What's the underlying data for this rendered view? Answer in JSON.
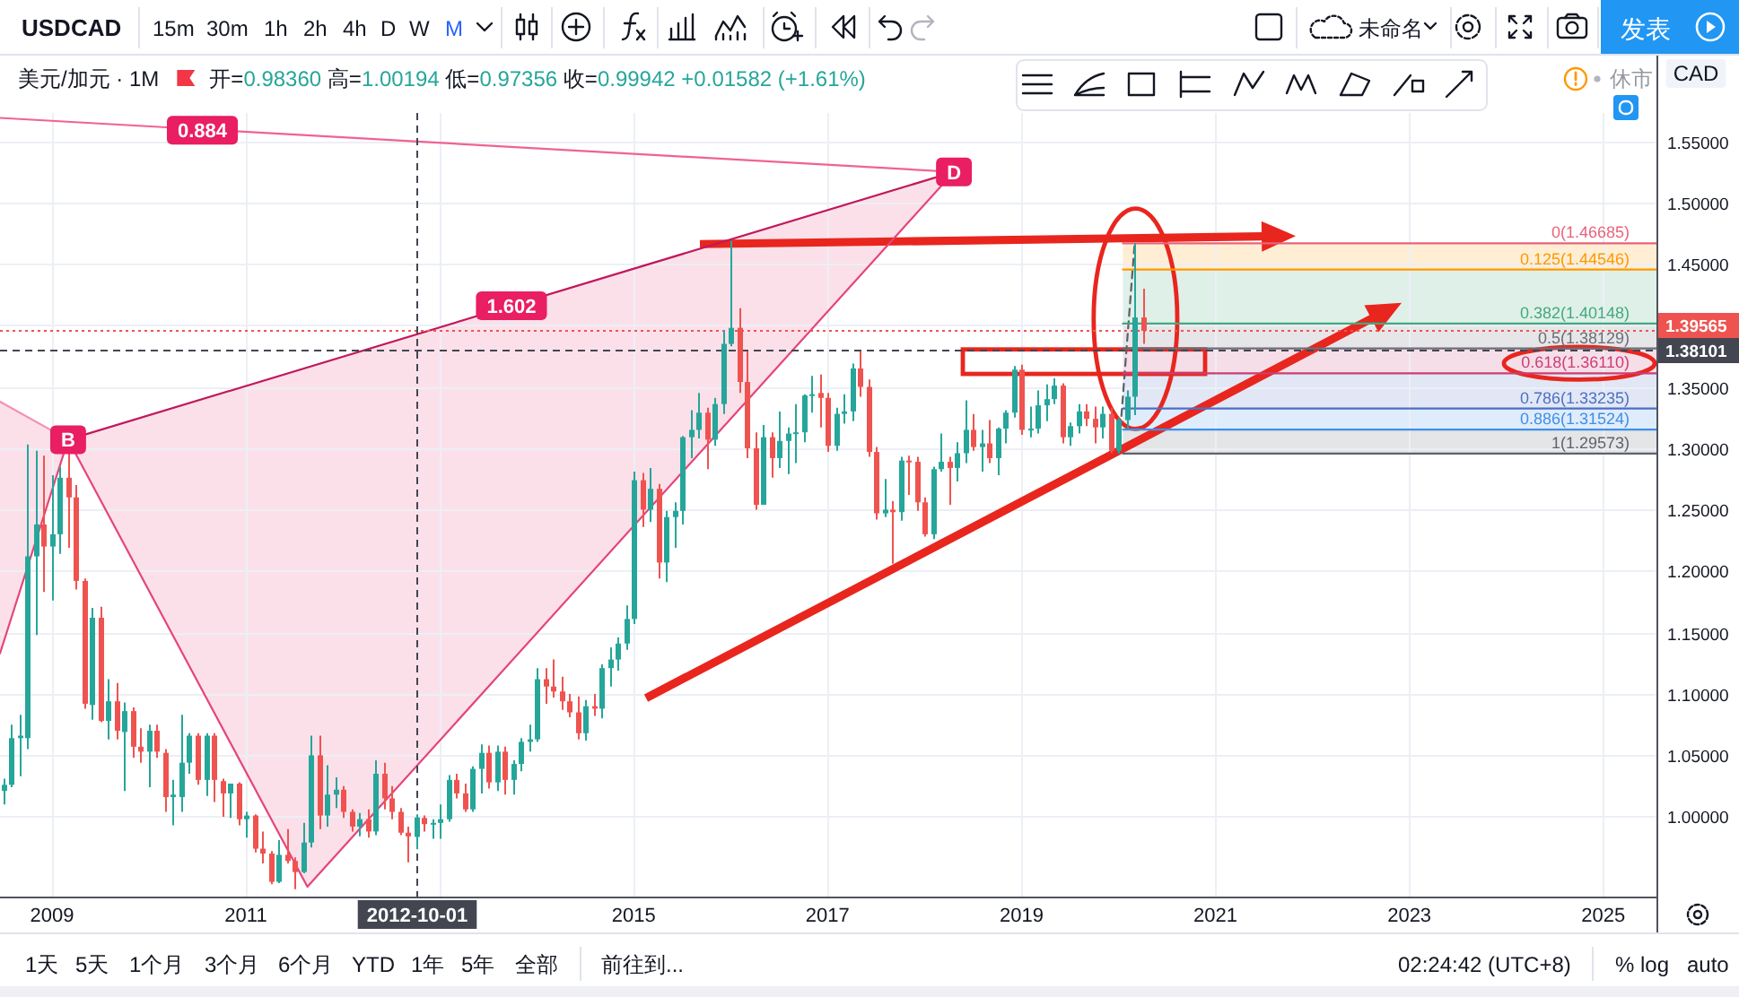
{
  "chart_data": {
    "type": "candlestick",
    "title": "USDCAD",
    "subtitle": "美元/加元 · 1M",
    "ylabel": "CAD",
    "xlim": [
      "2008-06-18",
      "2025-07-19"
    ],
    "ylim": [
      0.935,
      1.573
    ],
    "xticks": [
      "2009",
      "2011",
      {
        "value": "2013",
        "label": null
      },
      "2015",
      "2017",
      "2019",
      "2021",
      "2023",
      "2025"
    ],
    "yticks": [
      {
        "value": 1.0,
        "label": "1.00000"
      },
      {
        "value": 1.05,
        "label": "1.05000"
      },
      {
        "value": 1.1,
        "label": "1.10000"
      },
      {
        "value": 1.15,
        "label": "1.15000"
      },
      {
        "value": 1.2,
        "label": "1.20000"
      },
      {
        "value": 1.25,
        "label": "1.25000"
      },
      {
        "value": 1.3,
        "label": "1.30000"
      },
      {
        "value": 1.35,
        "label": "1.35000"
      },
      {
        "value": 1.4,
        "label": null
      },
      {
        "value": 1.45,
        "label": "1.45000"
      },
      {
        "value": 1.5,
        "label": "1.50000"
      },
      {
        "value": 1.55,
        "label": "1.55000"
      }
    ],
    "grid": true,
    "x": [
      "2008-07",
      "2008-08",
      "2008-09",
      "2008-10",
      "2008-11",
      "2008-12",
      "2009-01",
      "2009-02",
      "2009-03",
      "2009-04",
      "2009-05",
      "2009-06",
      "2009-07",
      "2009-08",
      "2009-09",
      "2009-10",
      "2009-11",
      "2009-12",
      "2010-01",
      "2010-02",
      "2010-03",
      "2010-04",
      "2010-05",
      "2010-06",
      "2010-07",
      "2010-08",
      "2010-09",
      "2010-10",
      "2010-11",
      "2010-12",
      "2011-01",
      "2011-02",
      "2011-03",
      "2011-04",
      "2011-05",
      "2011-06",
      "2011-07",
      "2011-08",
      "2011-09",
      "2011-10",
      "2011-11",
      "2011-12",
      "2012-01",
      "2012-02",
      "2012-03",
      "2012-04",
      "2012-05",
      "2012-06",
      "2012-07",
      "2012-08",
      "2012-09",
      "2012-10",
      "2012-11",
      "2012-12",
      "2013-01",
      "2013-02",
      "2013-03",
      "2013-04",
      "2013-05",
      "2013-06",
      "2013-07",
      "2013-08",
      "2013-09",
      "2013-10",
      "2013-11",
      "2013-12",
      "2014-01",
      "2014-02",
      "2014-03",
      "2014-04",
      "2014-05",
      "2014-06",
      "2014-07",
      "2014-08",
      "2014-09",
      "2014-10",
      "2014-11",
      "2014-12",
      "2015-01",
      "2015-02",
      "2015-03",
      "2015-04",
      "2015-05",
      "2015-06",
      "2015-07",
      "2015-08",
      "2015-09",
      "2015-10",
      "2015-11",
      "2015-12",
      "2016-01",
      "2016-02",
      "2016-03",
      "2016-04",
      "2016-05",
      "2016-06",
      "2016-07",
      "2016-08",
      "2016-09",
      "2016-10",
      "2016-11",
      "2016-12",
      "2017-01",
      "2017-02",
      "2017-03",
      "2017-04",
      "2017-05",
      "2017-06",
      "2017-07",
      "2017-08",
      "2017-09",
      "2017-10",
      "2017-11",
      "2017-12",
      "2018-01",
      "2018-02",
      "2018-03",
      "2018-04",
      "2018-05",
      "2018-06",
      "2018-07",
      "2018-08",
      "2018-09",
      "2018-10",
      "2018-11",
      "2018-12",
      "2019-01",
      "2019-02",
      "2019-03",
      "2019-04",
      "2019-05",
      "2019-06",
      "2019-07",
      "2019-08",
      "2019-09",
      "2019-10",
      "2019-11",
      "2019-12",
      "2020-01",
      "2020-02",
      "2020-03",
      "2020-04"
    ],
    "ohlc": [
      [
        1.021,
        1.031,
        1.01,
        1.026
      ],
      [
        1.026,
        1.075,
        1.024,
        1.064
      ],
      [
        1.064,
        1.083,
        1.033,
        1.066
      ],
      [
        1.064,
        1.303,
        1.055,
        1.212
      ],
      [
        1.212,
        1.298,
        1.148,
        1.238
      ],
      [
        1.238,
        1.294,
        1.183,
        1.22
      ],
      [
        1.22,
        1.278,
        1.176,
        1.23
      ],
      [
        1.23,
        1.285,
        1.214,
        1.276
      ],
      [
        1.276,
        1.307,
        1.219,
        1.26
      ],
      [
        1.26,
        1.27,
        1.185,
        1.192
      ],
      [
        1.192,
        1.194,
        1.088,
        1.092
      ],
      [
        1.091,
        1.17,
        1.079,
        1.162
      ],
      [
        1.162,
        1.171,
        1.077,
        1.078
      ],
      [
        1.078,
        1.112,
        1.063,
        1.094
      ],
      [
        1.094,
        1.109,
        1.063,
        1.07
      ],
      [
        1.069,
        1.093,
        1.021,
        1.086
      ],
      [
        1.086,
        1.089,
        1.048,
        1.057
      ],
      [
        1.057,
        1.072,
        1.044,
        1.053
      ],
      [
        1.053,
        1.075,
        1.024,
        1.07
      ],
      [
        1.07,
        1.075,
        1.048,
        1.053
      ],
      [
        1.052,
        1.055,
        1.004,
        1.016
      ],
      [
        1.016,
        1.03,
        0.993,
        1.018
      ],
      [
        1.016,
        1.083,
        1.004,
        1.044
      ],
      [
        1.044,
        1.068,
        1.035,
        1.066
      ],
      [
        1.066,
        1.068,
        1.026,
        1.03
      ],
      [
        1.03,
        1.068,
        1.017,
        1.066
      ],
      [
        1.066,
        1.068,
        1.012,
        1.03
      ],
      [
        1.029,
        1.031,
        1.0,
        1.019
      ],
      [
        1.019,
        1.027,
        0.999,
        1.027
      ],
      [
        1.027,
        1.028,
        0.993,
        0.998
      ],
      [
        0.998,
        1.004,
        0.983,
        1.001
      ],
      [
        1.001,
        1.002,
        0.971,
        0.974
      ],
      [
        0.974,
        0.988,
        0.962,
        0.97
      ],
      [
        0.97,
        0.972,
        0.945,
        0.947
      ],
      [
        0.947,
        0.981,
        0.946,
        0.969
      ],
      [
        0.969,
        0.99,
        0.962,
        0.964
      ],
      [
        0.964,
        0.967,
        0.941,
        0.955
      ],
      [
        0.955,
        0.995,
        0.954,
        0.979
      ],
      [
        0.979,
        1.066,
        0.975,
        1.05
      ],
      [
        1.05,
        1.066,
        0.99,
        1.001
      ],
      [
        1.001,
        1.042,
        0.992,
        1.018
      ],
      [
        1.018,
        1.032,
        1.007,
        1.022
      ],
      [
        1.022,
        1.025,
        0.999,
        1.004
      ],
      [
        1.004,
        1.006,
        0.988,
        0.992
      ],
      [
        0.992,
        1.003,
        0.984,
        0.998
      ],
      [
        0.998,
        1.006,
        0.983,
        0.988
      ],
      [
        0.988,
        1.046,
        0.985,
        1.035
      ],
      [
        1.035,
        1.044,
        1.006,
        1.015
      ],
      [
        1.015,
        1.025,
        0.998,
        1.004
      ],
      [
        1.004,
        1.007,
        0.985,
        0.987
      ],
      [
        0.987,
        0.992,
        0.963,
        0.984
      ],
      [
        0.9836,
        1.00194,
        0.97356,
        0.99942
      ],
      [
        0.999,
        1.001,
        0.988,
        0.994
      ],
      [
        0.994,
        0.998,
        0.982,
        0.995
      ],
      [
        0.995,
        1.01,
        0.982,
        0.998
      ],
      [
        0.998,
        1.034,
        0.996,
        1.03
      ],
      [
        1.03,
        1.035,
        1.015,
        1.019
      ],
      [
        1.019,
        1.027,
        1.004,
        1.006
      ],
      [
        1.006,
        1.041,
        1.004,
        1.039
      ],
      [
        1.039,
        1.059,
        1.019,
        1.052
      ],
      [
        1.052,
        1.058,
        1.023,
        1.028
      ],
      [
        1.028,
        1.058,
        1.021,
        1.053
      ],
      [
        1.053,
        1.057,
        1.018,
        1.03
      ],
      [
        1.03,
        1.046,
        1.018,
        1.043
      ],
      [
        1.043,
        1.064,
        1.037,
        1.061
      ],
      [
        1.061,
        1.075,
        1.053,
        1.063
      ],
      [
        1.063,
        1.121,
        1.061,
        1.112
      ],
      [
        1.112,
        1.121,
        1.092,
        1.106
      ],
      [
        1.106,
        1.128,
        1.097,
        1.102
      ],
      [
        1.102,
        1.114,
        1.087,
        1.094
      ],
      [
        1.094,
        1.1,
        1.081,
        1.085
      ],
      [
        1.085,
        1.098,
        1.063,
        1.068
      ],
      [
        1.068,
        1.095,
        1.062,
        1.09
      ],
      [
        1.09,
        1.1,
        1.082,
        1.088
      ],
      [
        1.088,
        1.124,
        1.08,
        1.121
      ],
      [
        1.121,
        1.138,
        1.106,
        1.128
      ],
      [
        1.128,
        1.146,
        1.119,
        1.141
      ],
      [
        1.141,
        1.172,
        1.136,
        1.161
      ],
      [
        1.161,
        1.281,
        1.157,
        1.274
      ],
      [
        1.274,
        1.28,
        1.236,
        1.25
      ],
      [
        1.25,
        1.284,
        1.24,
        1.267
      ],
      [
        1.267,
        1.271,
        1.194,
        1.207
      ],
      [
        1.207,
        1.249,
        1.191,
        1.244
      ],
      [
        1.244,
        1.256,
        1.219,
        1.249
      ],
      [
        1.249,
        1.31,
        1.238,
        1.309
      ],
      [
        1.309,
        1.331,
        1.292,
        1.315
      ],
      [
        1.315,
        1.345,
        1.308,
        1.329
      ],
      [
        1.329,
        1.333,
        1.283,
        1.307
      ],
      [
        1.307,
        1.341,
        1.302,
        1.336
      ],
      [
        1.336,
        1.396,
        1.328,
        1.385
      ],
      [
        1.385,
        1.469,
        1.383,
        1.398
      ],
      [
        1.398,
        1.414,
        1.345,
        1.354
      ],
      [
        1.354,
        1.379,
        1.292,
        1.3
      ],
      [
        1.3,
        1.313,
        1.25,
        1.254
      ],
      [
        1.254,
        1.319,
        1.254,
        1.309
      ],
      [
        1.309,
        1.313,
        1.276,
        1.292
      ],
      [
        1.292,
        1.33,
        1.284,
        1.306
      ],
      [
        1.306,
        1.317,
        1.279,
        1.312
      ],
      [
        1.312,
        1.336,
        1.288,
        1.313
      ],
      [
        1.313,
        1.344,
        1.305,
        1.343
      ],
      [
        1.343,
        1.359,
        1.329,
        1.344
      ],
      [
        1.345,
        1.36,
        1.317,
        1.341
      ],
      [
        1.341,
        1.345,
        1.297,
        1.302
      ],
      [
        1.302,
        1.333,
        1.298,
        1.328
      ],
      [
        1.328,
        1.344,
        1.32,
        1.33
      ],
      [
        1.33,
        1.369,
        1.322,
        1.365
      ],
      [
        1.365,
        1.379,
        1.342,
        1.35
      ],
      [
        1.35,
        1.356,
        1.293,
        1.297
      ],
      [
        1.297,
        1.301,
        1.242,
        1.247
      ],
      [
        1.247,
        1.275,
        1.244,
        1.25
      ],
      [
        1.25,
        1.257,
        1.206,
        1.248
      ],
      [
        1.248,
        1.293,
        1.241,
        1.29
      ],
      [
        1.29,
        1.294,
        1.262,
        1.289
      ],
      [
        1.289,
        1.293,
        1.249,
        1.256
      ],
      [
        1.256,
        1.26,
        1.228,
        1.23
      ],
      [
        1.23,
        1.285,
        1.226,
        1.283
      ],
      [
        1.283,
        1.312,
        1.281,
        1.289
      ],
      [
        1.289,
        1.293,
        1.254,
        1.284
      ],
      [
        1.284,
        1.305,
        1.273,
        1.296
      ],
      [
        1.296,
        1.339,
        1.288,
        1.315
      ],
      [
        1.315,
        1.328,
        1.298,
        1.301
      ],
      [
        1.301,
        1.315,
        1.281,
        1.304
      ],
      [
        1.304,
        1.323,
        1.288,
        1.292
      ],
      [
        1.292,
        1.317,
        1.278,
        1.316
      ],
      [
        1.316,
        1.331,
        1.304,
        1.329
      ],
      [
        1.329,
        1.367,
        1.325,
        1.364
      ],
      [
        1.364,
        1.368,
        1.311,
        1.315
      ],
      [
        1.315,
        1.334,
        1.309,
        1.316
      ],
      [
        1.316,
        1.347,
        1.312,
        1.335
      ],
      [
        1.335,
        1.352,
        1.322,
        1.34
      ],
      [
        1.34,
        1.357,
        1.336,
        1.351
      ],
      [
        1.351,
        1.353,
        1.304,
        1.309
      ],
      [
        1.309,
        1.321,
        1.302,
        1.318
      ],
      [
        1.318,
        1.336,
        1.312,
        1.33
      ],
      [
        1.33,
        1.336,
        1.318,
        1.324
      ],
      [
        1.324,
        1.334,
        1.304,
        1.317
      ],
      [
        1.317,
        1.334,
        1.308,
        1.328
      ],
      [
        1.328,
        1.333,
        1.296,
        1.298
      ],
      [
        1.298,
        1.325,
        1.2957,
        1.323
      ],
      [
        1.323,
        1.347,
        1.316,
        1.342
      ],
      [
        1.342,
        1.4669,
        1.327,
        1.4065
      ],
      [
        1.4065,
        1.43,
        1.385,
        1.39565
      ]
    ],
    "series": [
      {
        "type": "line",
        "color": "#e5457a",
        "x": [
          "2008-06-18",
          "2009-03",
          "2011-08-20",
          "2018-04-20"
        ],
        "values": [
          1.133,
          1.307,
          0.943,
          1.525
        ],
        "lower": [
          1.133,
          1.307,
          0.943,
          1.525
        ],
        "upper": [
          1.338,
          1.307,
          1.366,
          1.525
        ]
      },
      {
        "type": "line",
        "color": "#f48fb1",
        "x": [
          "2008-06-18",
          "2009-03"
        ],
        "values": [
          1.338,
          1.307
        ]
      },
      {
        "type": "line",
        "color": "#c2185b",
        "x": [
          "2009-03",
          "2018-04-20"
        ],
        "values": [
          1.307,
          1.525
        ]
      },
      {
        "type": "line",
        "color": "#f06292",
        "x": [
          "2008-06-18",
          "2018-04-20"
        ],
        "values": [
          1.569,
          1.525
        ]
      },
      {
        "type": "line",
        "color": "#5d606b",
        "line_style": "dashed",
        "x": [
          "2020-01",
          "2020-03"
        ],
        "values": [
          1.29573,
          1.46685
        ]
      },
      {
        "type": "line",
        "name": "0(1.46685)",
        "color": "#e8637b",
        "x": [
          "2020-01-18",
          "2025-07-19"
        ],
        "values": [
          1.46685,
          1.46685
        ]
      },
      {
        "type": "line",
        "name": "0.125(1.44546)",
        "color": "#ff9800",
        "x": [
          "2020-01-18",
          "2025-07-19"
        ],
        "values": [
          1.44546,
          1.44546
        ],
        "lower": [
          1.44546,
          1.44546
        ],
        "upper": [
          1.46685,
          1.46685
        ]
      },
      {
        "type": "line",
        "name": "0.382(1.40148)",
        "color": "#43a97f",
        "x": [
          "2020-01-18",
          "2025-07-19"
        ],
        "values": [
          1.40148,
          1.40148
        ],
        "lower": [
          1.40148,
          1.40148
        ],
        "upper": [
          1.44546,
          1.44546
        ]
      },
      {
        "type": "line",
        "name": "0.5(1.38129)",
        "color": "#6a6d78",
        "x": [
          "2020-01-18",
          "2025-07-19"
        ],
        "values": [
          1.38129,
          1.38129
        ],
        "lower": [
          1.38129,
          1.38129
        ],
        "upper": [
          1.40148,
          1.40148
        ]
      },
      {
        "type": "line",
        "name": "0.618(1.36110)",
        "color": "#cc3d74",
        "x": [
          "2020-01-18",
          "2025-07-19"
        ],
        "values": [
          1.3611,
          1.3611
        ],
        "lower": [
          1.3611,
          1.3611
        ],
        "upper": [
          1.38129,
          1.38129
        ]
      },
      {
        "type": "line",
        "name": "0.786(1.33235)",
        "color": "#4d6fc4",
        "x": [
          "2020-01-18",
          "2025-07-19"
        ],
        "values": [
          1.33235,
          1.33235
        ],
        "lower": [
          1.33235,
          1.33235
        ],
        "upper": [
          1.3611,
          1.3611
        ]
      },
      {
        "type": "line",
        "name": "0.886(1.31524)",
        "color": "#3f8fe8",
        "x": [
          "2020-01-18",
          "2025-07-19"
        ],
        "values": [
          1.31524,
          1.31524
        ],
        "lower": [
          1.31524,
          1.31524
        ],
        "upper": [
          1.33235,
          1.33235
        ]
      },
      {
        "type": "line",
        "name": "1(1.29573)",
        "color": "#5f626d",
        "x": [
          "2020-01-18",
          "2025-07-19"
        ],
        "values": [
          1.29573,
          1.29573
        ],
        "lower": [
          1.29573,
          1.29573
        ],
        "upper": [
          1.31524,
          1.31524
        ]
      }
    ],
    "ref_lines": [
      {
        "axis": "y",
        "value": 1.39565,
        "label": "1.39565",
        "color": "#ef5350",
        "line_style": "dotted"
      },
      {
        "axis": "y",
        "value": 1.38101,
        "label": "1.38101",
        "color": "#434651",
        "line_style": "dashed"
      },
      {
        "axis": "x",
        "value": "2012-10-01",
        "label": "2012-10-01",
        "color": "#434651",
        "line_style": "dashed"
      }
    ],
    "annotations": [
      {
        "text": "B",
        "x": "2009-03",
        "y": 1.307
      },
      {
        "text": "D",
        "x": "2018-04-20",
        "y": 1.525
      },
      {
        "text": "0.884",
        "x": "2010-07-20",
        "y": 1.559
      },
      {
        "text": "1.602",
        "x": "2013-09-27",
        "y": 1.416
      },
      "开=0.98360 高=1.00194 低=0.97356 收=0.99942 +0.01582 (+1.61%)",
      "15m",
      "30m",
      "1h",
      "2h",
      "4h",
      "D",
      "W",
      "M",
      "未命名",
      "发表",
      "休市",
      "1天",
      "5天",
      "1个月",
      "3个月",
      "6个月",
      "YTD",
      "1年",
      "5年",
      "全部",
      "前往到...",
      "02:24:42 (UTC+8)",
      "%",
      "log",
      "auto"
    ]
  }
}
